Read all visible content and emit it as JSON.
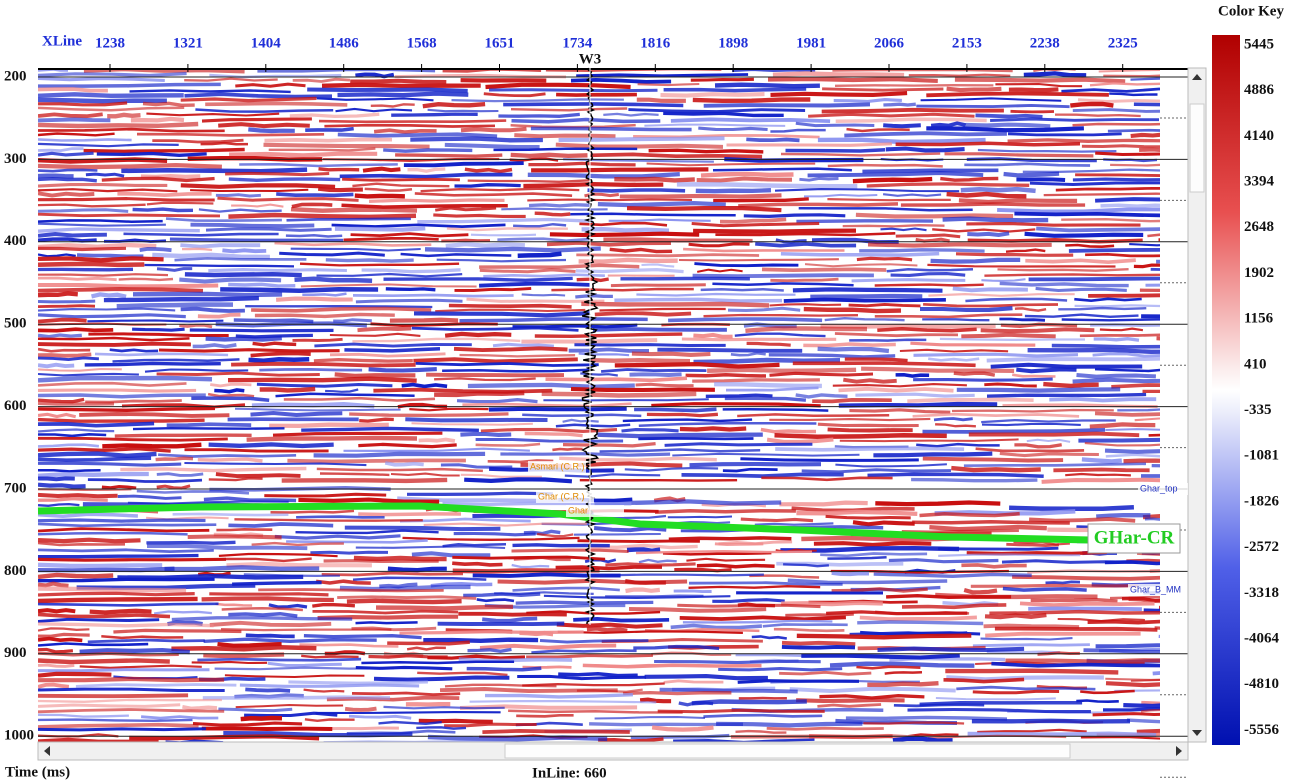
{
  "section": {
    "xline_label": "XLine",
    "xline_ticks": [
      "1238",
      "1321",
      "1404",
      "1486",
      "1568",
      "1651",
      "1734",
      "1816",
      "1898",
      "1981",
      "2066",
      "2153",
      "2238",
      "2325"
    ],
    "time_ticks": [
      "200",
      "300",
      "400",
      "500",
      "600",
      "700",
      "800",
      "900",
      "1000"
    ],
    "time_label": "Time (ms)",
    "inline_label": "InLine: 660",
    "well_name": "W3",
    "horizon_pick": "GHar-CR",
    "horizon_labels": [
      "Asmari (C.R.)",
      "Ghar (C.R.)",
      "Ghar",
      "Ghar_top",
      "Ghar_B_MM"
    ]
  },
  "color_key": {
    "title": "Color Key",
    "ticks": [
      "5445",
      "4886",
      "4140",
      "3394",
      "2648",
      "1902",
      "1156",
      "410",
      "-335",
      "-1081",
      "-1826",
      "-2572",
      "-3318",
      "-4064",
      "-4810",
      "-5556"
    ]
  }
}
